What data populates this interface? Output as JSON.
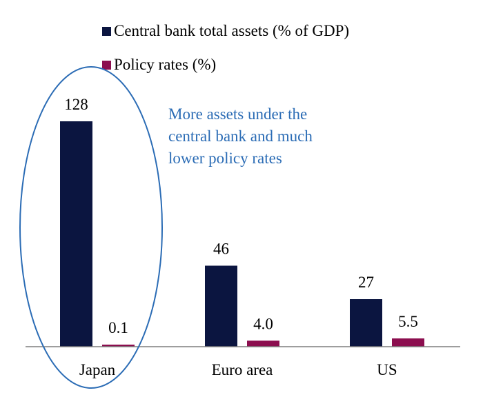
{
  "chart_data": {
    "type": "bar",
    "categories": [
      "Japan",
      "Euro area",
      "US"
    ],
    "series": [
      {
        "name": "Central bank total assets (% of GDP)",
        "values": [
          128,
          46,
          27
        ],
        "labels": [
          "128",
          "46",
          "27"
        ],
        "color": "#0b1540"
      },
      {
        "name": "Policy rates (%)",
        "values": [
          0.1,
          4.0,
          5.5
        ],
        "labels": [
          "0.1",
          "4.0",
          "5.5"
        ],
        "color": "#8c0e4f"
      }
    ],
    "legend_placement": "top-left",
    "grid": false,
    "annotation": {
      "lines": [
        "More assets under the",
        "central bank and much",
        "lower policy rates"
      ],
      "color": "#2b6cb5",
      "highlight_category": "Japan"
    }
  }
}
